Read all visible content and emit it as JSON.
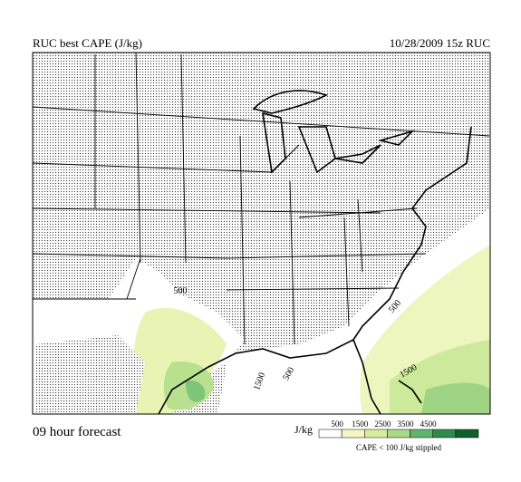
{
  "header": {
    "title": "RUC best CAPE (J/kg)",
    "valid": "10/28/2009 15z RUC"
  },
  "footer": {
    "forecast": "09 hour forecast",
    "note": "CAPE < 100 J/kg stippled"
  },
  "legend": {
    "unit": "J/kg",
    "ticks": [
      500,
      1500,
      2500,
      3500,
      4500
    ],
    "colors": [
      "#ffffff",
      "#f4f7c4",
      "#d6ec9e",
      "#a9d98a",
      "#5fb56d",
      "#2e8b4a",
      "#0f5e2c"
    ]
  },
  "map": {
    "contour_labels": [
      "500",
      "500",
      "1500",
      "500",
      "1500"
    ]
  }
}
